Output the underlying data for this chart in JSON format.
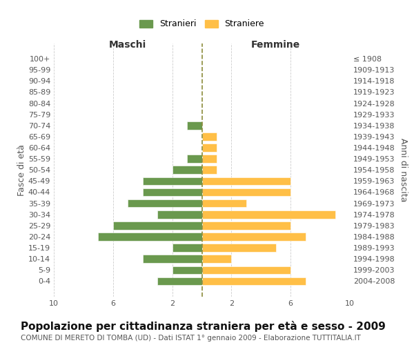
{
  "age_groups": [
    "0-4",
    "5-9",
    "10-14",
    "15-19",
    "20-24",
    "25-29",
    "30-34",
    "35-39",
    "40-44",
    "45-49",
    "50-54",
    "55-59",
    "60-64",
    "65-69",
    "70-74",
    "75-79",
    "80-84",
    "85-89",
    "90-94",
    "95-99",
    "100+"
  ],
  "birth_years": [
    "2004-2008",
    "1999-2003",
    "1994-1998",
    "1989-1993",
    "1984-1988",
    "1979-1983",
    "1974-1978",
    "1969-1973",
    "1964-1968",
    "1959-1963",
    "1954-1958",
    "1949-1953",
    "1944-1948",
    "1939-1943",
    "1934-1938",
    "1929-1933",
    "1924-1928",
    "1919-1923",
    "1914-1918",
    "1909-1913",
    "≤ 1908"
  ],
  "males": [
    3,
    2,
    4,
    2,
    7,
    6,
    3,
    5,
    4,
    4,
    2,
    1,
    0,
    0,
    1,
    0,
    0,
    0,
    0,
    0,
    0
  ],
  "females": [
    7,
    6,
    2,
    5,
    7,
    6,
    9,
    3,
    6,
    6,
    1,
    1,
    1,
    1,
    0,
    0,
    0,
    0,
    0,
    0,
    0
  ],
  "male_color": "#6a994e",
  "female_color": "#ffbf47",
  "center_line_color": "#8b8b3a",
  "bg_color": "#ffffff",
  "grid_color": "#cccccc",
  "title": "Popolazione per cittadinanza straniera per età e sesso - 2009",
  "subtitle": "COMUNE DI MERETO DI TOMBA (UD) - Dati ISTAT 1° gennaio 2009 - Elaborazione TUTTITALIA.IT",
  "ylabel_left": "Fasce di età",
  "ylabel_right": "Anni di nascita",
  "xlabel_left": "Maschi",
  "xlabel_right": "Femmine",
  "legend_male": "Stranieri",
  "legend_female": "Straniere",
  "xlim": 10,
  "xtick_vals": [
    -10,
    -6,
    -2,
    2,
    6,
    10
  ],
  "xtick_labels": [
    "10",
    "6",
    "2",
    "2",
    "6",
    "10"
  ],
  "title_fontsize": 11,
  "subtitle_fontsize": 7.5,
  "axis_label_fontsize": 10,
  "tick_fontsize": 8
}
